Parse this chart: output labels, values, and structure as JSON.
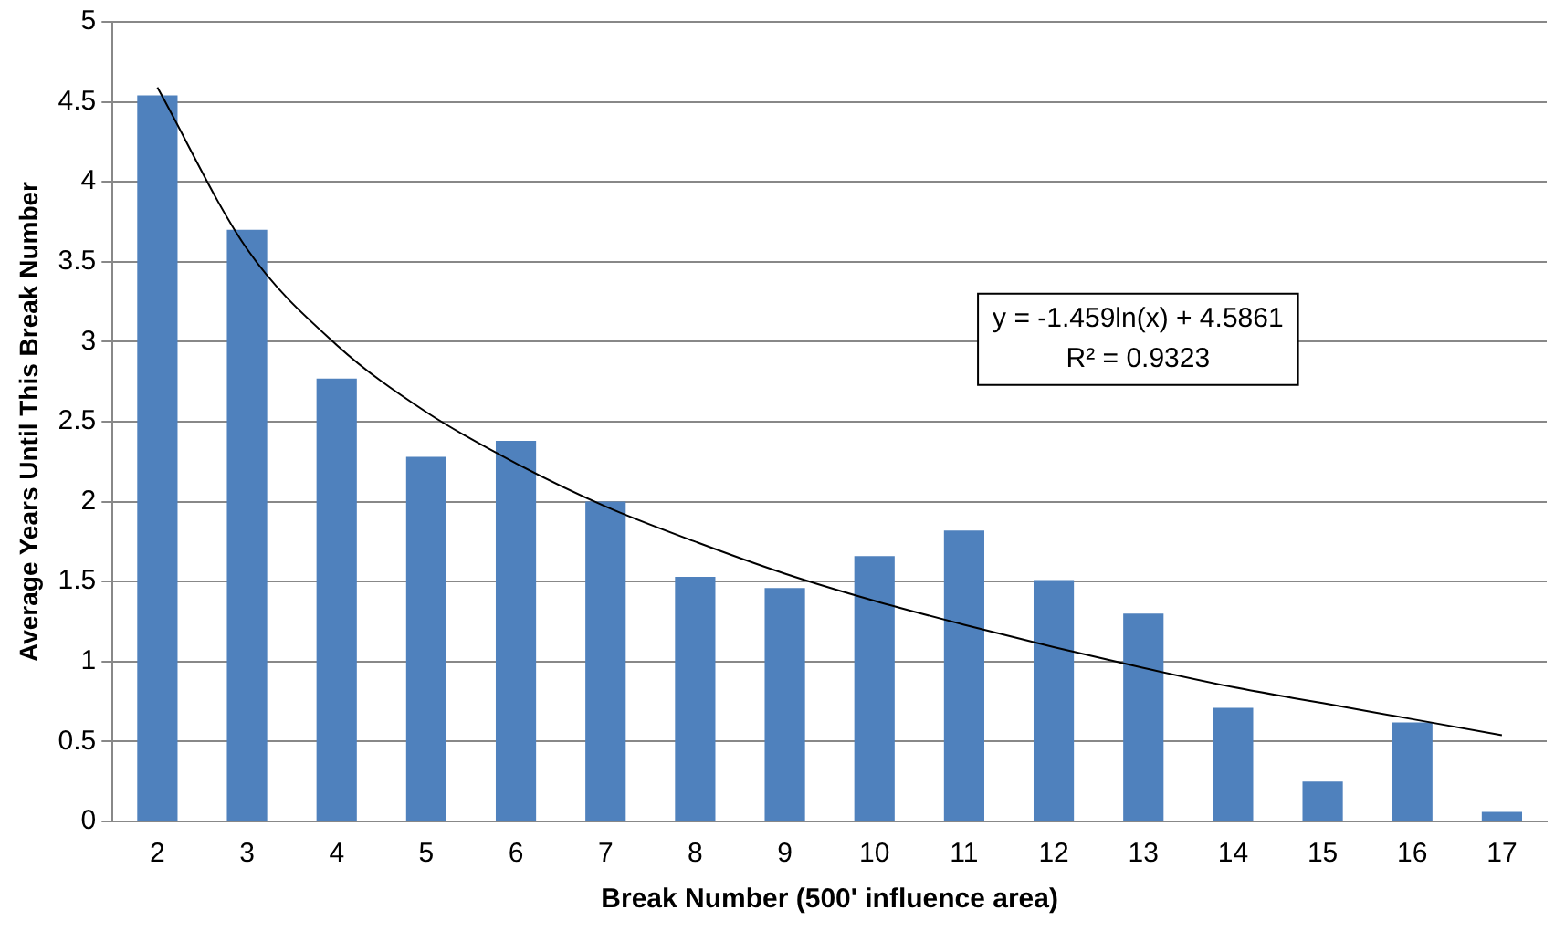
{
  "chart_data": {
    "type": "bar",
    "xlabel": "Break Number (500' influence area)",
    "ylabel": "Average Years Until This Break Number",
    "categories": [
      "2",
      "3",
      "4",
      "5",
      "6",
      "7",
      "8",
      "9",
      "10",
      "11",
      "12",
      "13",
      "14",
      "15",
      "16",
      "17"
    ],
    "series": [
      {
        "color": "#4f81bd",
        "values": [
          4.54,
          3.7,
          2.77,
          2.28,
          2.38,
          2.0,
          1.53,
          1.46,
          1.66,
          1.82,
          1.51,
          1.3,
          0.71,
          0.25,
          0.62,
          0.06
        ]
      },
      {
        "type": "line",
        "color": "#000000",
        "x": [
          "2",
          "3",
          "4",
          "5",
          "6",
          "7",
          "8",
          "9",
          "10",
          "11",
          "12",
          "13",
          "14",
          "15",
          "16",
          "17"
        ],
        "values": [
          4.59,
          3.58,
          2.98,
          2.56,
          2.24,
          1.97,
          1.75,
          1.55,
          1.38,
          1.23,
          1.09,
          0.96,
          0.84,
          0.74,
          0.64,
          0.54
        ]
      }
    ],
    "ylim": [
      0,
      5
    ],
    "yticks": [
      0,
      0.5,
      1,
      1.5,
      2,
      2.5,
      3,
      3.5,
      4,
      4.5,
      5
    ],
    "grid": "y",
    "legend": false,
    "marker": "none",
    "line_style": "solid",
    "annotations": [
      "y = -1.459ln(x) + 4.5861",
      "R² = 0.9323"
    ]
  }
}
